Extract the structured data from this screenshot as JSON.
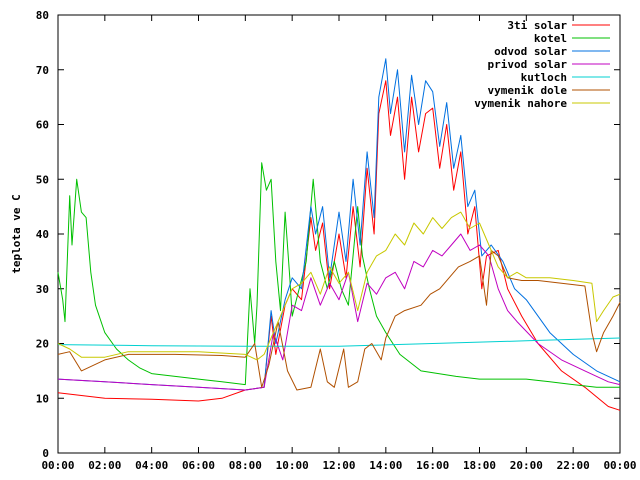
{
  "chart_data": {
    "type": "line",
    "title": "",
    "xlabel": "",
    "ylabel": "teplota ve C",
    "xlim": [
      0,
      24
    ],
    "ylim": [
      0,
      80
    ],
    "grid": false,
    "legend_position": "top-right",
    "x_ticks": [
      {
        "value": 0,
        "label": "00:00"
      },
      {
        "value": 2,
        "label": "02:00"
      },
      {
        "value": 4,
        "label": "04:00"
      },
      {
        "value": 6,
        "label": "06:00"
      },
      {
        "value": 8,
        "label": "08:00"
      },
      {
        "value": 10,
        "label": "10:00"
      },
      {
        "value": 12,
        "label": "12:00"
      },
      {
        "value": 14,
        "label": "14:00"
      },
      {
        "value": 16,
        "label": "16:00"
      },
      {
        "value": 18,
        "label": "18:00"
      },
      {
        "value": 20,
        "label": "20:00"
      },
      {
        "value": 22,
        "label": "22:00"
      },
      {
        "value": 24,
        "label": "00:00"
      }
    ],
    "y_ticks": [
      0,
      10,
      20,
      30,
      40,
      50,
      60,
      70,
      80
    ],
    "series": [
      {
        "name": "3ti solar",
        "color": "#ff0000",
        "points": [
          [
            0,
            11
          ],
          [
            1,
            10.5
          ],
          [
            2,
            10
          ],
          [
            4,
            9.8
          ],
          [
            6,
            9.5
          ],
          [
            7,
            10
          ],
          [
            8,
            11.5
          ],
          [
            8.8,
            12
          ],
          [
            9.1,
            25
          ],
          [
            9.3,
            18
          ],
          [
            9.7,
            27
          ],
          [
            10,
            30
          ],
          [
            10.4,
            28
          ],
          [
            10.8,
            43
          ],
          [
            11,
            37
          ],
          [
            11.3,
            42
          ],
          [
            11.6,
            30
          ],
          [
            12,
            40
          ],
          [
            12.3,
            32
          ],
          [
            12.6,
            45
          ],
          [
            12.9,
            34
          ],
          [
            13.2,
            52
          ],
          [
            13.5,
            40
          ],
          [
            13.7,
            62
          ],
          [
            14,
            68
          ],
          [
            14.2,
            58
          ],
          [
            14.5,
            65
          ],
          [
            14.8,
            50
          ],
          [
            15.1,
            65
          ],
          [
            15.4,
            55
          ],
          [
            15.7,
            62
          ],
          [
            16,
            63
          ],
          [
            16.3,
            52
          ],
          [
            16.6,
            60
          ],
          [
            16.9,
            48
          ],
          [
            17.2,
            55
          ],
          [
            17.5,
            40
          ],
          [
            17.8,
            45
          ],
          [
            18.1,
            30
          ],
          [
            18.3,
            36
          ],
          [
            18.8,
            37
          ],
          [
            19.2,
            30
          ],
          [
            19.8,
            25
          ],
          [
            20.5,
            20
          ],
          [
            21.5,
            15
          ],
          [
            22.5,
            12
          ],
          [
            23.5,
            8.5
          ],
          [
            24,
            7.8
          ]
        ]
      },
      {
        "name": "kotel",
        "color": "#00c000",
        "points": [
          [
            0,
            33
          ],
          [
            0.2,
            28
          ],
          [
            0.3,
            24
          ],
          [
            0.5,
            47
          ],
          [
            0.6,
            38
          ],
          [
            0.8,
            50
          ],
          [
            1,
            44
          ],
          [
            1.2,
            43
          ],
          [
            1.4,
            33
          ],
          [
            1.6,
            27
          ],
          [
            2,
            22
          ],
          [
            2.5,
            19
          ],
          [
            3,
            17
          ],
          [
            3.5,
            15.5
          ],
          [
            4,
            14.5
          ],
          [
            5,
            14
          ],
          [
            6,
            13.5
          ],
          [
            7,
            13
          ],
          [
            8,
            12.5
          ],
          [
            8.2,
            30
          ],
          [
            8.4,
            20
          ],
          [
            8.5,
            27
          ],
          [
            8.7,
            53
          ],
          [
            8.9,
            48
          ],
          [
            9.1,
            50
          ],
          [
            9.3,
            35
          ],
          [
            9.5,
            26
          ],
          [
            9.7,
            44
          ],
          [
            9.9,
            32
          ],
          [
            10,
            25
          ],
          [
            10.3,
            30
          ],
          [
            10.6,
            35
          ],
          [
            10.9,
            50
          ],
          [
            11.2,
            35
          ],
          [
            11.5,
            30
          ],
          [
            11.8,
            35
          ],
          [
            12.1,
            30
          ],
          [
            12.4,
            27
          ],
          [
            12.8,
            45
          ],
          [
            13,
            36
          ],
          [
            13.3,
            30
          ],
          [
            13.6,
            25
          ],
          [
            14,
            22
          ],
          [
            14.6,
            18
          ],
          [
            15.5,
            15
          ],
          [
            17,
            14
          ],
          [
            18,
            13.5
          ],
          [
            19,
            13.5
          ],
          [
            20,
            13.5
          ],
          [
            21,
            13
          ],
          [
            22,
            12.5
          ],
          [
            23,
            12
          ],
          [
            24,
            12
          ]
        ]
      },
      {
        "name": "odvod solar",
        "color": "#0070e0",
        "points": [
          [
            0,
            13.5
          ],
          [
            2,
            13
          ],
          [
            4,
            12.5
          ],
          [
            6,
            12
          ],
          [
            8,
            11.5
          ],
          [
            8.8,
            12
          ],
          [
            9.1,
            26
          ],
          [
            9.3,
            20
          ],
          [
            9.7,
            28
          ],
          [
            10,
            32
          ],
          [
            10.4,
            30
          ],
          [
            10.8,
            45
          ],
          [
            11,
            40
          ],
          [
            11.3,
            45
          ],
          [
            11.6,
            32
          ],
          [
            12,
            44
          ],
          [
            12.3,
            35
          ],
          [
            12.6,
            50
          ],
          [
            12.9,
            38
          ],
          [
            13.2,
            55
          ],
          [
            13.5,
            43
          ],
          [
            13.7,
            65
          ],
          [
            14,
            72
          ],
          [
            14.2,
            62
          ],
          [
            14.5,
            70
          ],
          [
            14.8,
            55
          ],
          [
            15.1,
            69
          ],
          [
            15.4,
            60
          ],
          [
            15.7,
            68
          ],
          [
            16,
            66
          ],
          [
            16.3,
            56
          ],
          [
            16.6,
            64
          ],
          [
            16.9,
            52
          ],
          [
            17.2,
            58
          ],
          [
            17.5,
            45
          ],
          [
            17.8,
            48
          ],
          [
            18.1,
            36
          ],
          [
            18.5,
            38
          ],
          [
            19,
            35
          ],
          [
            19.5,
            30
          ],
          [
            20,
            28
          ],
          [
            21,
            22
          ],
          [
            22,
            18
          ],
          [
            23,
            15
          ],
          [
            24,
            13
          ]
        ]
      },
      {
        "name": "privod solar",
        "color": "#c000c0",
        "points": [
          [
            0,
            13.5
          ],
          [
            2,
            13
          ],
          [
            4,
            12.5
          ],
          [
            6,
            12
          ],
          [
            8,
            11.5
          ],
          [
            8.8,
            12
          ],
          [
            9.2,
            22
          ],
          [
            9.6,
            17
          ],
          [
            10,
            27
          ],
          [
            10.4,
            26
          ],
          [
            10.8,
            32
          ],
          [
            11.2,
            27
          ],
          [
            11.6,
            31
          ],
          [
            12,
            28
          ],
          [
            12.4,
            33
          ],
          [
            12.8,
            24
          ],
          [
            13.2,
            31
          ],
          [
            13.6,
            29
          ],
          [
            14,
            32
          ],
          [
            14.4,
            33
          ],
          [
            14.8,
            30
          ],
          [
            15.2,
            35
          ],
          [
            15.6,
            34
          ],
          [
            16,
            37
          ],
          [
            16.4,
            36
          ],
          [
            16.8,
            38
          ],
          [
            17.2,
            40
          ],
          [
            17.6,
            37
          ],
          [
            18,
            38
          ],
          [
            18.4,
            36
          ],
          [
            18.8,
            30
          ],
          [
            19.2,
            26
          ],
          [
            19.6,
            24
          ],
          [
            20.5,
            20
          ],
          [
            21.5,
            17
          ],
          [
            22.5,
            15
          ],
          [
            23.5,
            13
          ],
          [
            24,
            12.5
          ]
        ]
      },
      {
        "name": "kutloch",
        "color": "#00d0d0",
        "points": [
          [
            0,
            19.8
          ],
          [
            4,
            19.6
          ],
          [
            8,
            19.5
          ],
          [
            12,
            19.5
          ],
          [
            16,
            20
          ],
          [
            20,
            20.5
          ],
          [
            24,
            21
          ]
        ]
      },
      {
        "name": "vymenik dole",
        "color": "#b05000",
        "points": [
          [
            0,
            18
          ],
          [
            0.5,
            18.5
          ],
          [
            1,
            15
          ],
          [
            1.5,
            16
          ],
          [
            2,
            17
          ],
          [
            3,
            18
          ],
          [
            5,
            18
          ],
          [
            7,
            17.8
          ],
          [
            8,
            17.5
          ],
          [
            8.4,
            20
          ],
          [
            8.7,
            12
          ],
          [
            9,
            16
          ],
          [
            9.4,
            24
          ],
          [
            9.8,
            15
          ],
          [
            10.2,
            11.5
          ],
          [
            10.8,
            12
          ],
          [
            11.2,
            19
          ],
          [
            11.5,
            13
          ],
          [
            11.8,
            12
          ],
          [
            12.2,
            19
          ],
          [
            12.4,
            12
          ],
          [
            12.8,
            13
          ],
          [
            13.1,
            19
          ],
          [
            13.4,
            20
          ],
          [
            13.8,
            17
          ],
          [
            14,
            21
          ],
          [
            14.4,
            25
          ],
          [
            14.8,
            26
          ],
          [
            15.5,
            27
          ],
          [
            15.9,
            29
          ],
          [
            16.3,
            30
          ],
          [
            16.7,
            32
          ],
          [
            17.1,
            34
          ],
          [
            17.6,
            35
          ],
          [
            18,
            36
          ],
          [
            18.3,
            27
          ],
          [
            18.5,
            37
          ],
          [
            18.8,
            36
          ],
          [
            19.2,
            32
          ],
          [
            19.8,
            31.5
          ],
          [
            20.5,
            31.5
          ],
          [
            21.5,
            31
          ],
          [
            22.5,
            30.5
          ],
          [
            22.8,
            22
          ],
          [
            23,
            18.5
          ],
          [
            23.3,
            22
          ],
          [
            23.7,
            25
          ],
          [
            24,
            27.5
          ]
        ]
      },
      {
        "name": "vymenik nahore",
        "color": "#c8c800",
        "points": [
          [
            0,
            20
          ],
          [
            0.5,
            19
          ],
          [
            1,
            17.5
          ],
          [
            2,
            17.5
          ],
          [
            3,
            18.5
          ],
          [
            4,
            18.5
          ],
          [
            6,
            18.5
          ],
          [
            8,
            18
          ],
          [
            8.5,
            17
          ],
          [
            8.8,
            18
          ],
          [
            9.2,
            22
          ],
          [
            9.6,
            26
          ],
          [
            10,
            30
          ],
          [
            10.4,
            31
          ],
          [
            10.8,
            33
          ],
          [
            11.2,
            29
          ],
          [
            11.6,
            34
          ],
          [
            12,
            31
          ],
          [
            12.4,
            33
          ],
          [
            12.8,
            26
          ],
          [
            13.2,
            33
          ],
          [
            13.6,
            36
          ],
          [
            14,
            37
          ],
          [
            14.4,
            40
          ],
          [
            14.8,
            38
          ],
          [
            15.2,
            42
          ],
          [
            15.6,
            40
          ],
          [
            16,
            43
          ],
          [
            16.4,
            41
          ],
          [
            16.8,
            43
          ],
          [
            17.2,
            44
          ],
          [
            17.6,
            41
          ],
          [
            18,
            42
          ],
          [
            18.4,
            38
          ],
          [
            18.8,
            34
          ],
          [
            19.2,
            32
          ],
          [
            19.6,
            33
          ],
          [
            20,
            32
          ],
          [
            21,
            32
          ],
          [
            22,
            31.5
          ],
          [
            22.8,
            31
          ],
          [
            23,
            24
          ],
          [
            23.3,
            26
          ],
          [
            23.7,
            28.5
          ],
          [
            24,
            29
          ]
        ]
      }
    ]
  }
}
